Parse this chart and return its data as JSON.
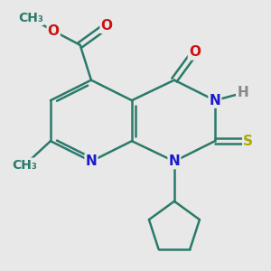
{
  "background_color": "#e8e8e8",
  "bond_color": "#2a7a6a",
  "bond_width": 1.8,
  "atom_colors": {
    "N": "#1a1acc",
    "O": "#cc1111",
    "S": "#aaaa00",
    "H": "#888888",
    "C": "#2a7a6a"
  },
  "font_size_atom": 11,
  "font_size_label": 9
}
